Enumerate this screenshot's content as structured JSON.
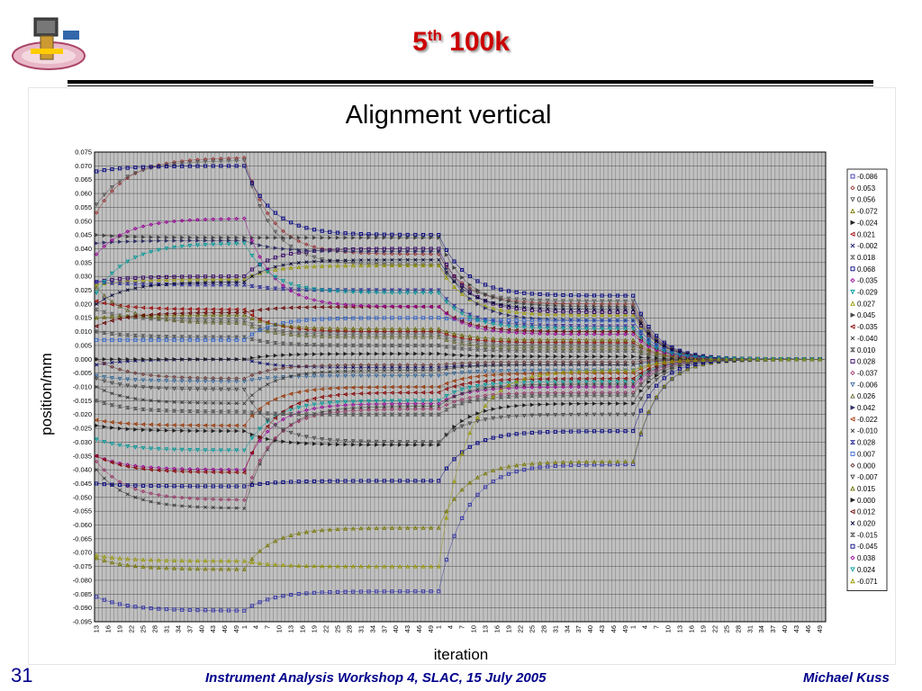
{
  "slide": {
    "title_main": "5",
    "title_sup": "th",
    "title_rest": " 100k",
    "page_number": "31",
    "footer_center": "Instrument Analysis Workshop 4, SLAC, 15 July 2005",
    "footer_right": "Michael Kuss",
    "title_color": "#cc0000",
    "footer_color": "#00008b",
    "logo_icon": "satellite-logo-icon"
  },
  "chart_data": {
    "type": "line",
    "title": "Alignment vertical",
    "xlabel": "iteration",
    "ylabel": "position/mm",
    "ylim": [
      -0.095,
      0.075
    ],
    "ytick_step": 0.005,
    "grid": true,
    "plot_background": "#c0c0c0",
    "legend_position": "right",
    "x_segments": [
      {
        "start": 13,
        "end": 50
      },
      {
        "start": 1,
        "end": 50
      },
      {
        "start": 1,
        "end": 50
      },
      {
        "start": 1,
        "end": 50
      }
    ],
    "x_tick_labels": [
      "13",
      "16",
      "19",
      "22",
      "25",
      "28",
      "31",
      "34",
      "37",
      "40",
      "43",
      "46",
      "49",
      "1",
      "4",
      "7",
      "10",
      "13",
      "16",
      "19",
      "22",
      "25",
      "28",
      "31",
      "34",
      "37",
      "40",
      "43",
      "46",
      "49",
      "1",
      "4",
      "7",
      "10",
      "13",
      "16",
      "19",
      "22",
      "25",
      "28",
      "31",
      "34",
      "37",
      "40",
      "43",
      "46",
      "49",
      "1",
      "4",
      "7",
      "10",
      "13",
      "16",
      "19",
      "22",
      "25",
      "28",
      "31",
      "34",
      "37",
      "40",
      "43",
      "46",
      "49"
    ],
    "series": [
      {
        "name": "-0.086",
        "color": "#3333aa",
        "marker": "square",
        "segment_end_values": [
          -0.091,
          -0.084,
          -0.038,
          0.0
        ]
      },
      {
        "name": "0.053",
        "color": "#993333",
        "marker": "diamond",
        "segment_end_values": [
          0.073,
          0.038,
          0.02,
          0.0
        ]
      },
      {
        "name": "0.056",
        "color": "#555555",
        "marker": "triangle-down",
        "segment_end_values": [
          0.072,
          0.034,
          0.021,
          0.0
        ]
      },
      {
        "name": "-0.072",
        "color": "#777700",
        "marker": "triangle",
        "segment_end_values": [
          -0.076,
          -0.061,
          -0.037,
          0.0
        ]
      },
      {
        "name": "-0.024",
        "color": "#222222",
        "marker": "triangle-right",
        "segment_end_values": [
          -0.026,
          -0.031,
          -0.016,
          0.0
        ]
      },
      {
        "name": "0.021",
        "color": "#990000",
        "marker": "triangle-left",
        "segment_end_values": [
          0.018,
          0.01,
          0.006,
          0.0
        ]
      },
      {
        "name": "-0.002",
        "color": "#000066",
        "marker": "x",
        "segment_end_values": [
          0.0,
          -0.003,
          -0.002,
          0.0
        ]
      },
      {
        "name": "0.018",
        "color": "#666666",
        "marker": "hourglass",
        "segment_end_values": [
          0.014,
          0.009,
          0.005,
          0.0
        ]
      },
      {
        "name": "0.068",
        "color": "#000080",
        "marker": "square",
        "segment_end_values": [
          0.07,
          0.045,
          0.023,
          0.0
        ]
      },
      {
        "name": "-0.035",
        "color": "#990099",
        "marker": "diamond",
        "segment_end_values": [
          -0.04,
          -0.016,
          -0.01,
          0.0
        ]
      },
      {
        "name": "-0.029",
        "color": "#009999",
        "marker": "triangle-down",
        "segment_end_values": [
          -0.033,
          -0.015,
          -0.008,
          0.0
        ]
      },
      {
        "name": "0.027",
        "color": "#999900",
        "marker": "triangle",
        "segment_end_values": [
          0.029,
          0.034,
          0.016,
          0.0
        ]
      },
      {
        "name": "0.045",
        "color": "#444444",
        "marker": "triangle-right",
        "segment_end_values": [
          0.044,
          0.044,
          0.019,
          0.0
        ]
      },
      {
        "name": "-0.035",
        "color": "#880000",
        "marker": "triangle-left",
        "segment_end_values": [
          -0.041,
          -0.012,
          -0.007,
          0.0
        ]
      },
      {
        "name": "-0.040",
        "color": "#333333",
        "marker": "x",
        "segment_end_values": [
          -0.054,
          -0.017,
          -0.009,
          0.0
        ]
      },
      {
        "name": "0.010",
        "color": "#555555",
        "marker": "hourglass",
        "segment_end_values": [
          0.008,
          0.005,
          0.003,
          0.0
        ]
      },
      {
        "name": "0.028",
        "color": "#330066",
        "marker": "square",
        "segment_end_values": [
          0.03,
          0.04,
          0.017,
          0.0
        ]
      },
      {
        "name": "-0.037",
        "color": "#993366",
        "marker": "diamond",
        "segment_end_values": [
          -0.051,
          -0.018,
          -0.012,
          0.0
        ]
      },
      {
        "name": "-0.006",
        "color": "#336699",
        "marker": "triangle-down",
        "segment_end_values": [
          -0.008,
          -0.006,
          -0.004,
          0.0
        ]
      },
      {
        "name": "0.026",
        "color": "#666633",
        "marker": "triangle",
        "segment_end_values": [
          0.013,
          0.008,
          0.004,
          0.0
        ]
      },
      {
        "name": "0.042",
        "color": "#333366",
        "marker": "triangle-right",
        "segment_end_values": [
          0.043,
          0.039,
          0.014,
          0.0
        ]
      },
      {
        "name": "-0.022",
        "color": "#993300",
        "marker": "triangle-left",
        "segment_end_values": [
          -0.024,
          -0.01,
          -0.005,
          0.0
        ]
      },
      {
        "name": "-0.010",
        "color": "#333333",
        "marker": "x",
        "segment_end_values": [
          -0.016,
          -0.004,
          -0.002,
          0.0
        ]
      },
      {
        "name": "0.028",
        "color": "#333399",
        "marker": "hourglass",
        "segment_end_values": [
          0.027,
          0.025,
          0.012,
          0.0
        ]
      },
      {
        "name": "0.007",
        "color": "#3366cc",
        "marker": "square",
        "segment_end_values": [
          0.007,
          0.015,
          0.014,
          0.0
        ]
      },
      {
        "name": "0.000",
        "color": "#663333",
        "marker": "diamond",
        "segment_end_values": [
          -0.007,
          -0.002,
          -0.001,
          0.0
        ]
      },
      {
        "name": "-0.007",
        "color": "#444444",
        "marker": "triangle-down",
        "segment_end_values": [
          -0.011,
          -0.03,
          -0.02,
          0.0
        ]
      },
      {
        "name": "0.015",
        "color": "#666600",
        "marker": "triangle",
        "segment_end_values": [
          0.016,
          0.011,
          0.007,
          0.0
        ]
      },
      {
        "name": "0.000",
        "color": "#222222",
        "marker": "triangle-right",
        "segment_end_values": [
          0.0,
          0.002,
          0.001,
          0.0
        ]
      },
      {
        "name": "0.012",
        "color": "#660000",
        "marker": "triangle-left",
        "segment_end_values": [
          0.017,
          0.019,
          0.01,
          0.0
        ]
      },
      {
        "name": "0.020",
        "color": "#000033",
        "marker": "x",
        "segment_end_values": [
          0.028,
          0.036,
          0.018,
          0.0
        ]
      },
      {
        "name": "-0.015",
        "color": "#555555",
        "marker": "hourglass",
        "segment_end_values": [
          -0.019,
          -0.02,
          -0.013,
          0.0
        ]
      },
      {
        "name": "-0.045",
        "color": "#000080",
        "marker": "square",
        "segment_end_values": [
          -0.046,
          -0.044,
          -0.026,
          0.0
        ]
      },
      {
        "name": "0.038",
        "color": "#990099",
        "marker": "diamond",
        "segment_end_values": [
          0.051,
          0.019,
          0.009,
          0.0
        ]
      },
      {
        "name": "0.024",
        "color": "#009999",
        "marker": "triangle-down",
        "segment_end_values": [
          0.042,
          0.024,
          0.011,
          0.0
        ]
      },
      {
        "name": "-0.071",
        "color": "#999900",
        "marker": "triangle",
        "segment_end_values": [
          -0.073,
          -0.075,
          -0.004,
          0.0
        ]
      }
    ]
  }
}
